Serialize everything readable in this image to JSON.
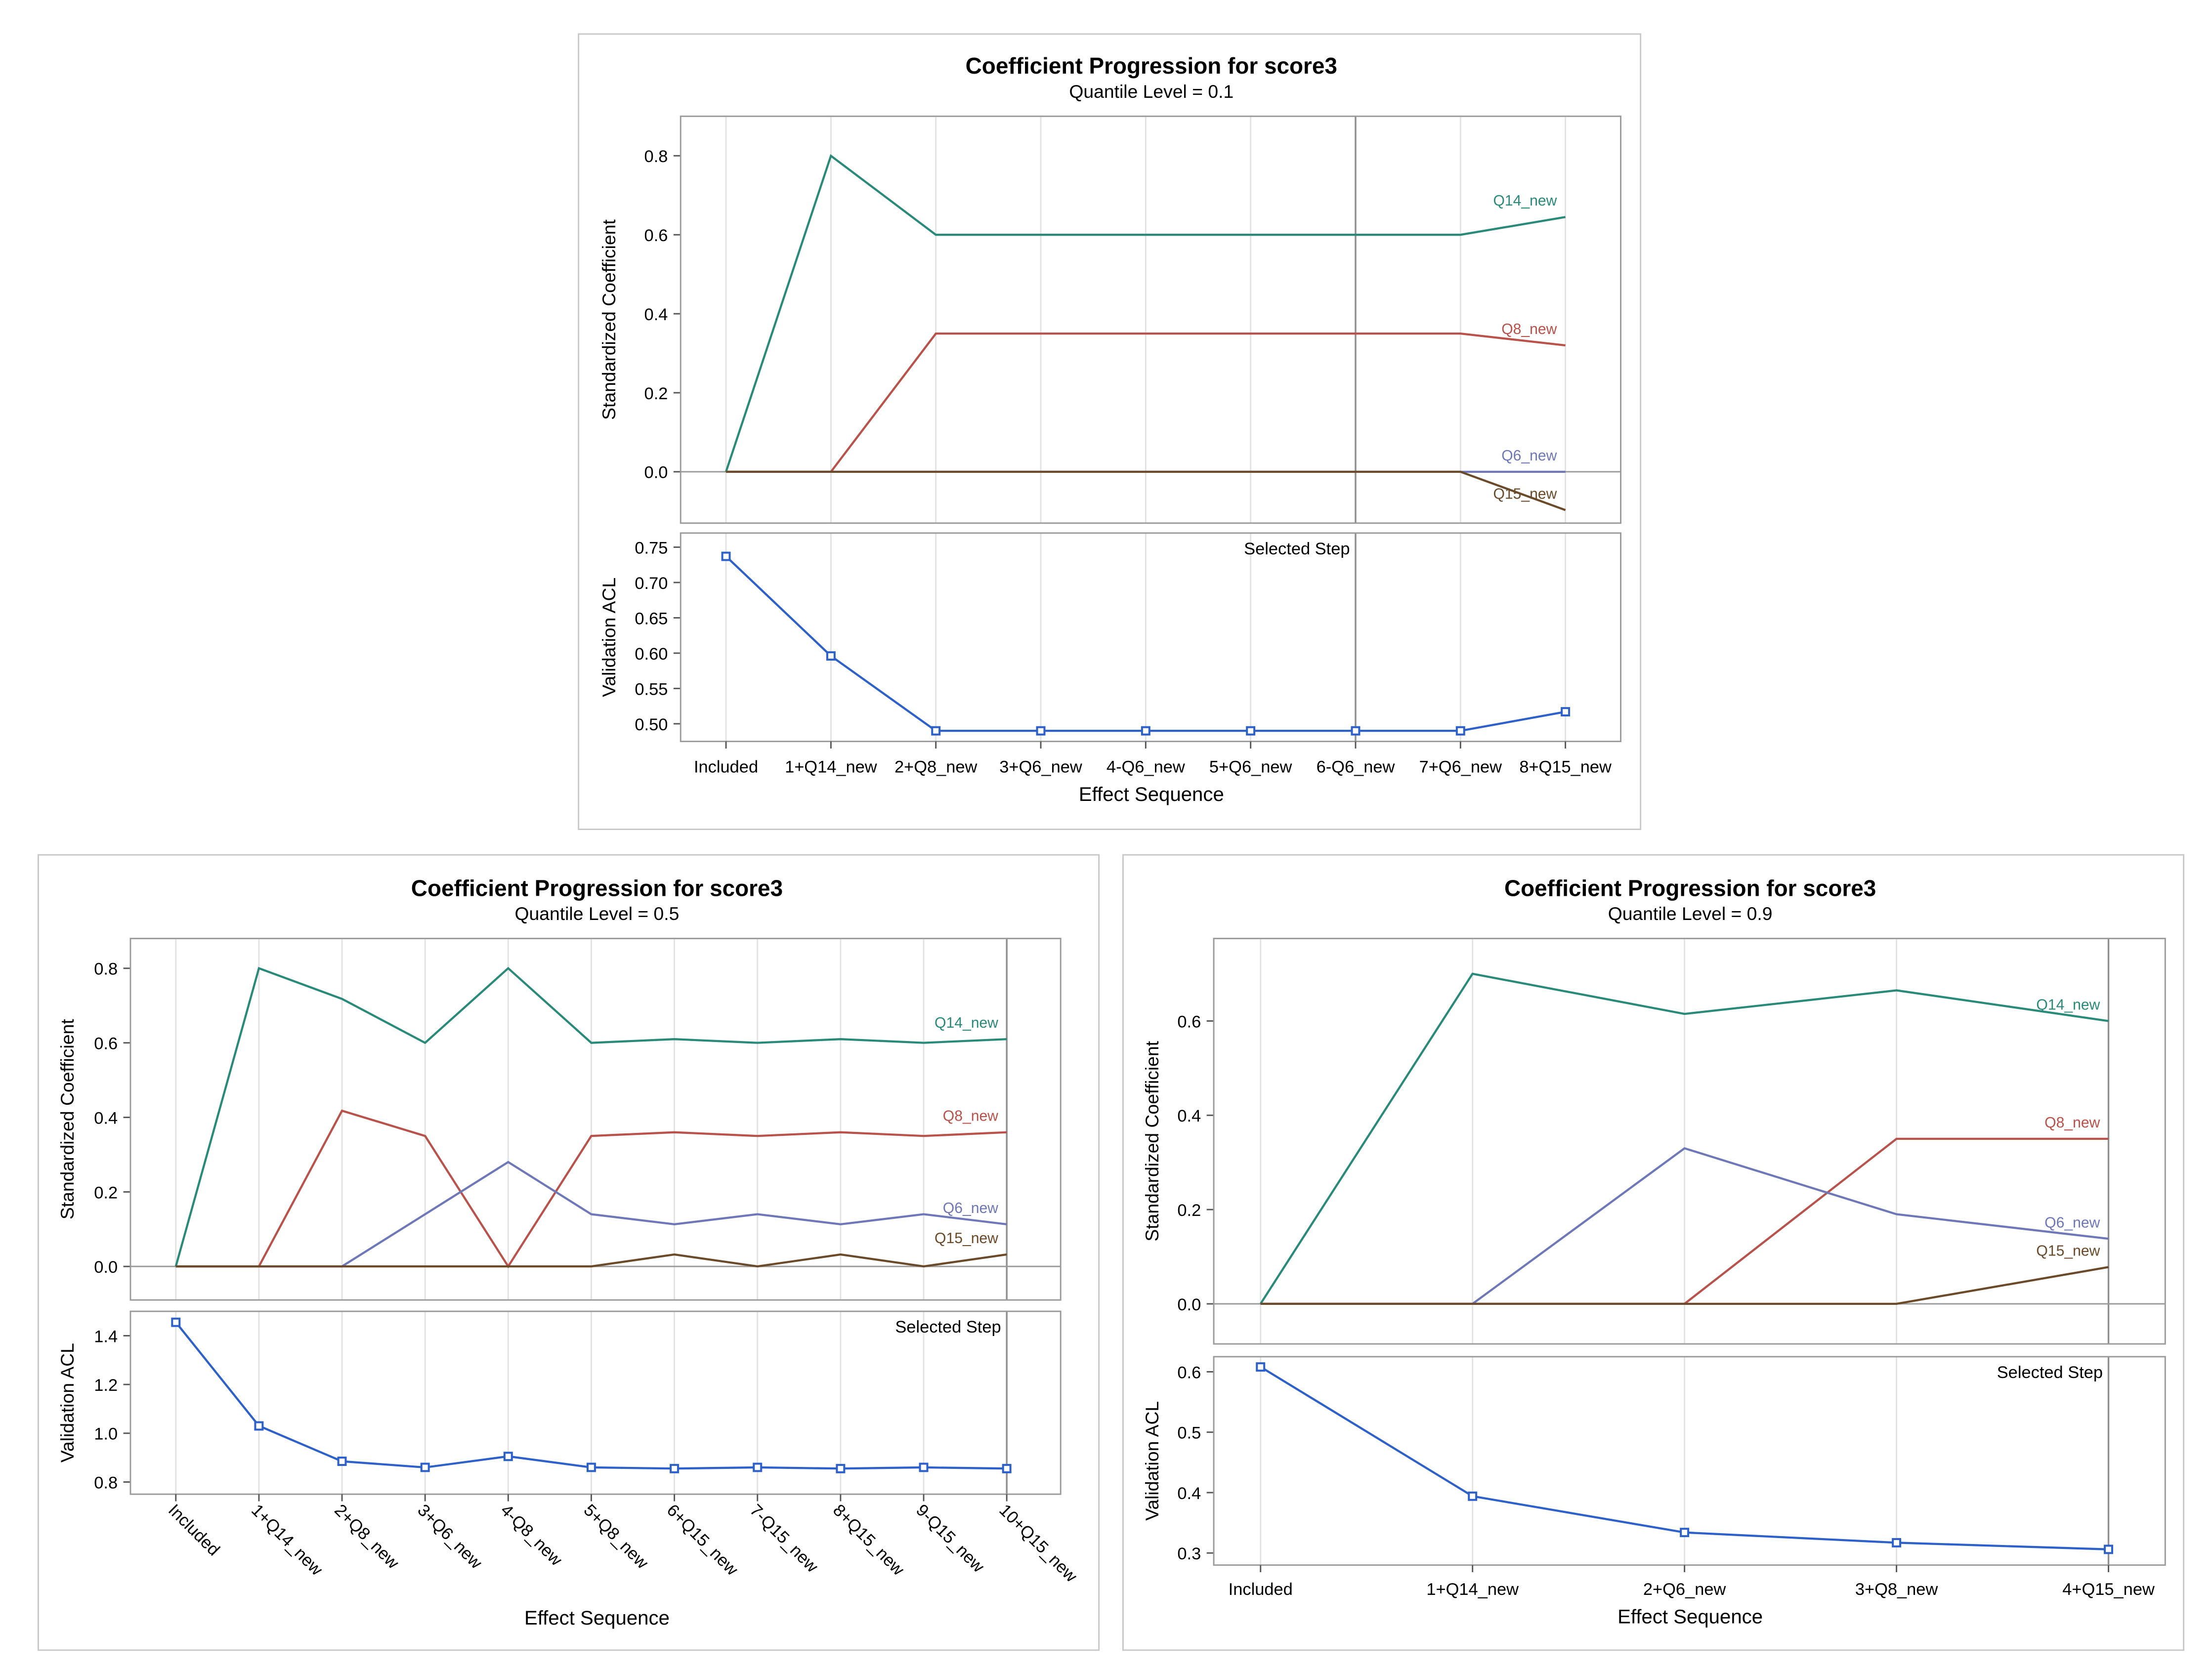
{
  "colors": {
    "q14": "#2a8a7a",
    "q8": "#b8524a",
    "q6": "#6e78b8",
    "q15": "#6b4a2a",
    "acl": "#2e60c9",
    "grid": "#e2e2e2",
    "frame": "#9a9a9a",
    "zero": "#9a9a9a",
    "selected": "#8f8f8f",
    "text": "#000000"
  },
  "chart_data": [
    {
      "type": "line",
      "title": "Coefficient Progression for score3",
      "subtitle": "Quantile Level = 0.1",
      "xlabel": "Effect Sequence",
      "categories": [
        "Included",
        "1+Q14_new",
        "2+Q8_new",
        "3+Q6_new",
        "4-Q6_new",
        "5+Q6_new",
        "6-Q6_new",
        "7+Q6_new",
        "8+Q15_new"
      ],
      "rotate_ticks": false,
      "selected_index": 6,
      "selected_label": "Selected Step",
      "coef": {
        "ylabel": "Standardized Coefficient",
        "ylim": [
          -0.13,
          0.9
        ],
        "yticks": [
          0.0,
          0.2,
          0.4,
          0.6,
          0.8
        ],
        "tick_labels": [
          "0.0",
          "0.2",
          "0.4",
          "0.6",
          "0.8"
        ],
        "series": [
          {
            "name": "Q14_new",
            "color_key": "q14",
            "values": [
              0,
              0.8,
              0.6,
              0.6,
              0.6,
              0.6,
              0.6,
              0.6,
              0.645
            ]
          },
          {
            "name": "Q8_new",
            "color_key": "q8",
            "values": [
              0,
              0,
              0.35,
              0.35,
              0.35,
              0.35,
              0.35,
              0.35,
              0.32
            ]
          },
          {
            "name": "Q6_new",
            "color_key": "q6",
            "values": [
              0,
              0,
              0,
              0,
              0,
              0,
              0,
              0,
              0
            ]
          },
          {
            "name": "Q15_new",
            "color_key": "q15",
            "values": [
              0,
              0,
              0,
              0,
              0,
              0,
              0,
              0,
              -0.097
            ]
          }
        ]
      },
      "acl": {
        "ylabel": "Validation ACL",
        "ylim": [
          0.475,
          0.77
        ],
        "yticks": [
          0.5,
          0.55,
          0.6,
          0.65,
          0.7,
          0.75
        ],
        "tick_labels": [
          "0.50",
          "0.55",
          "0.60",
          "0.65",
          "0.70",
          "0.75"
        ],
        "values": [
          0.737,
          0.596,
          0.49,
          0.49,
          0.49,
          0.49,
          0.49,
          0.49,
          0.517
        ]
      }
    },
    {
      "type": "line",
      "title": "Coefficient Progression for score3",
      "subtitle": "Quantile Level = 0.5",
      "xlabel": "Effect Sequence",
      "categories": [
        "Included",
        "1+Q14_new",
        "2+Q8_new",
        "3+Q6_new",
        "4-Q8_new",
        "5+Q8_new",
        "6+Q15_new",
        "7-Q15_new",
        "8+Q15_new",
        "9-Q15_new",
        "10+Q15_new"
      ],
      "rotate_ticks": true,
      "selected_index": 10,
      "selected_label": "Selected Step",
      "coef": {
        "ylabel": "Standardized Coefficient",
        "ylim": [
          -0.09,
          0.88
        ],
        "yticks": [
          0.0,
          0.2,
          0.4,
          0.6,
          0.8
        ],
        "tick_labels": [
          "0.0",
          "0.2",
          "0.4",
          "0.6",
          "0.8"
        ],
        "series": [
          {
            "name": "Q14_new",
            "color_key": "q14",
            "values": [
              0,
              0.8,
              0.718,
              0.6,
              0.8,
              0.6,
              0.61,
              0.6,
              0.61,
              0.6,
              0.61
            ]
          },
          {
            "name": "Q8_new",
            "color_key": "q8",
            "values": [
              0,
              0,
              0.418,
              0.35,
              0,
              0.35,
              0.36,
              0.35,
              0.36,
              0.35,
              0.36
            ]
          },
          {
            "name": "Q6_new",
            "color_key": "q6",
            "values": [
              0,
              0,
              0,
              0.14,
              0.28,
              0.14,
              0.113,
              0.14,
              0.113,
              0.14,
              0.113
            ]
          },
          {
            "name": "Q15_new",
            "color_key": "q15",
            "values": [
              0,
              0,
              0,
              0,
              0,
              0,
              0.032,
              0,
              0.032,
              0,
              0.032
            ]
          }
        ]
      },
      "acl": {
        "ylabel": "Validation ACL",
        "ylim": [
          0.75,
          1.5
        ],
        "yticks": [
          0.8,
          1.0,
          1.2,
          1.4
        ],
        "tick_labels": [
          "0.8",
          "1.0",
          "1.2",
          "1.4"
        ],
        "values": [
          1.455,
          1.03,
          0.885,
          0.86,
          0.905,
          0.86,
          0.855,
          0.86,
          0.855,
          0.86,
          0.855
        ]
      }
    },
    {
      "type": "line",
      "title": "Coefficient Progression for score3",
      "subtitle": "Quantile Level = 0.9",
      "xlabel": "Effect Sequence",
      "categories": [
        "Included",
        "1+Q14_new",
        "2+Q6_new",
        "3+Q8_new",
        "4+Q15_new"
      ],
      "rotate_ticks": false,
      "selected_index": 4,
      "selected_label": "Selected Step",
      "coef": {
        "ylabel": "Standardized Coefficient",
        "ylim": [
          -0.085,
          0.775
        ],
        "yticks": [
          0.0,
          0.2,
          0.4,
          0.6
        ],
        "tick_labels": [
          "0.0",
          "0.2",
          "0.4",
          "0.6"
        ],
        "series": [
          {
            "name": "Q14_new",
            "color_key": "q14",
            "values": [
              0,
              0.7,
              0.615,
              0.665,
              0.6
            ]
          },
          {
            "name": "Q8_new",
            "color_key": "q8",
            "values": [
              0,
              0,
              0,
              0.35,
              0.35
            ]
          },
          {
            "name": "Q6_new",
            "color_key": "q6",
            "values": [
              0,
              0,
              0.33,
              0.19,
              0.138
            ]
          },
          {
            "name": "Q15_new",
            "color_key": "q15",
            "values": [
              0,
              0,
              0,
              0,
              0.078
            ]
          }
        ]
      },
      "acl": {
        "ylabel": "Validation ACL",
        "ylim": [
          0.28,
          0.625
        ],
        "yticks": [
          0.3,
          0.4,
          0.5,
          0.6
        ],
        "tick_labels": [
          "0.3",
          "0.4",
          "0.5",
          "0.6"
        ],
        "values": [
          0.608,
          0.394,
          0.334,
          0.317,
          0.306
        ]
      }
    }
  ]
}
